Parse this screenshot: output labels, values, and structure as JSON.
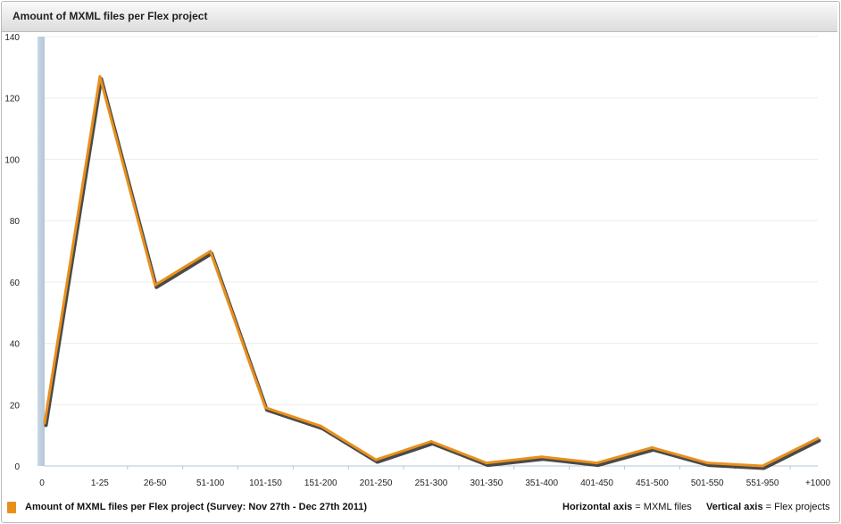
{
  "header": {
    "title": "Amount of MXML files per Flex project"
  },
  "chart_data": {
    "type": "line",
    "title": "Amount of MXML files per Flex project",
    "categories": [
      "0",
      "1-25",
      "26-50",
      "51-100",
      "101-150",
      "151-200",
      "201-250",
      "251-300",
      "301-350",
      "351-400",
      "401-450",
      "451-500",
      "501-550",
      "551-950",
      "+1000"
    ],
    "series": [
      {
        "name": "Amount of MXML files per Flex project (Survey: Nov 27th - Dec 27th 2011)",
        "values": [
          14,
          127,
          59,
          70,
          19,
          13,
          2,
          8,
          1,
          3,
          1,
          6,
          1,
          0,
          9
        ],
        "color": "#e8901c"
      }
    ],
    "ylim": [
      0,
      140
    ],
    "yticks": [
      0,
      20,
      40,
      60,
      80,
      100,
      120,
      140
    ],
    "grid": true
  },
  "footer": {
    "legend_label": "Amount of MXML files per Flex project (Survey: Nov 27th - Dec 27th 2011)",
    "horizontal_axis_bold": "Horizontal axis",
    "horizontal_axis_value": " = MXML files",
    "vertical_axis_bold": "Vertical axis",
    "vertical_axis_value": " = Flex projects"
  }
}
